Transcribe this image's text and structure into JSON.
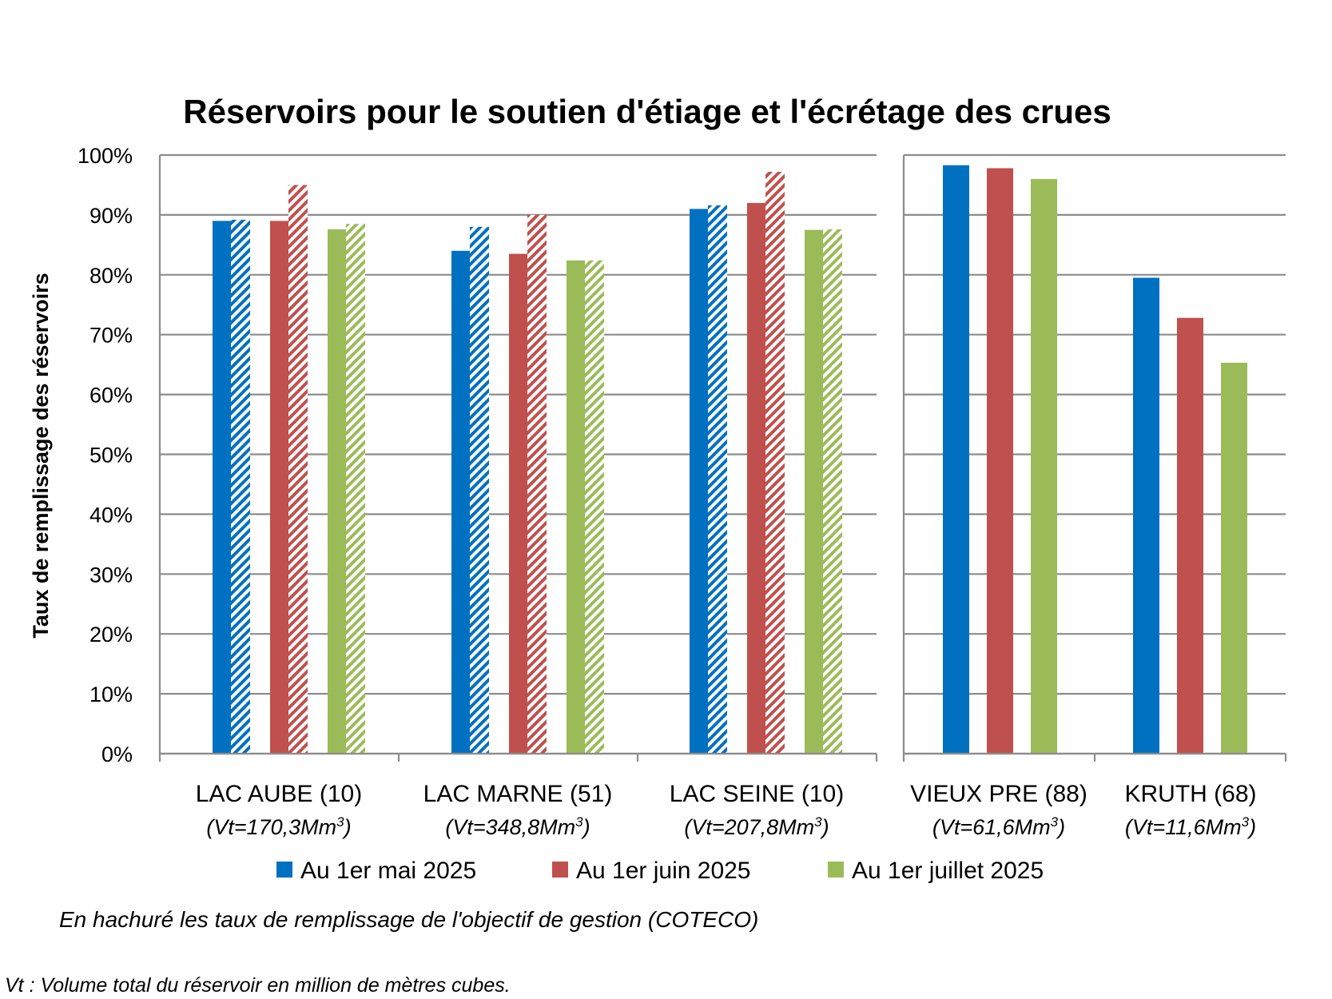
{
  "chart_data": {
    "type": "bar",
    "title": "Réservoirs pour le soutien d'étiage et l'écrétage des crues",
    "ylabel": "Taux de remplissage des réservoirs",
    "ylim": [
      0,
      100
    ],
    "y_ticks": [
      "0%",
      "10%",
      "20%",
      "30%",
      "40%",
      "50%",
      "60%",
      "70%",
      "80%",
      "90%",
      "100%"
    ],
    "grid": true,
    "legend_position": "bottom",
    "categories": [
      {
        "name": "LAC AUBE (10)",
        "volume_prefix": "(Vt=170,3Mm",
        "volume_exp": "3",
        "volume_suffix": ")"
      },
      {
        "name": "LAC MARNE (51)",
        "volume_prefix": "(Vt=348,8Mm",
        "volume_exp": "3",
        "volume_suffix": ")"
      },
      {
        "name": "LAC SEINE (10)",
        "volume_prefix": "(Vt=207,8Mm",
        "volume_exp": "3",
        "volume_suffix": ")"
      },
      {
        "name": "VIEUX PRE (88)",
        "volume_prefix": "(Vt=61,6Mm",
        "volume_exp": "3",
        "volume_suffix": ")"
      },
      {
        "name": "KRUTH (68)",
        "volume_prefix": "(Vt=11,6Mm",
        "volume_exp": "3",
        "volume_suffix": ")"
      }
    ],
    "series": [
      {
        "name": "Au 1er mai 2025",
        "color": "#0070C0",
        "values": [
          89,
          84,
          91,
          98.3,
          79.5
        ],
        "objective": [
          89.2,
          88,
          91.6,
          null,
          null
        ]
      },
      {
        "name": "Au 1er juin 2025",
        "color": "#C0504D",
        "values": [
          89,
          83.5,
          92,
          97.8,
          72.8
        ],
        "objective": [
          95,
          90,
          97.2,
          null,
          null
        ]
      },
      {
        "name": "Au 1er juillet 2025",
        "color": "#9BBB59",
        "values": [
          87.6,
          82.4,
          87.5,
          96,
          65.3
        ],
        "objective": [
          88.5,
          82.4,
          87.6,
          null,
          null
        ]
      }
    ]
  },
  "notes": {
    "hatch_note": "En hachuré les taux de remplissage de l'objectif de gestion (COTECO)",
    "vt_note": "Vt : Volume total du réservoir en million de mètres cubes."
  }
}
